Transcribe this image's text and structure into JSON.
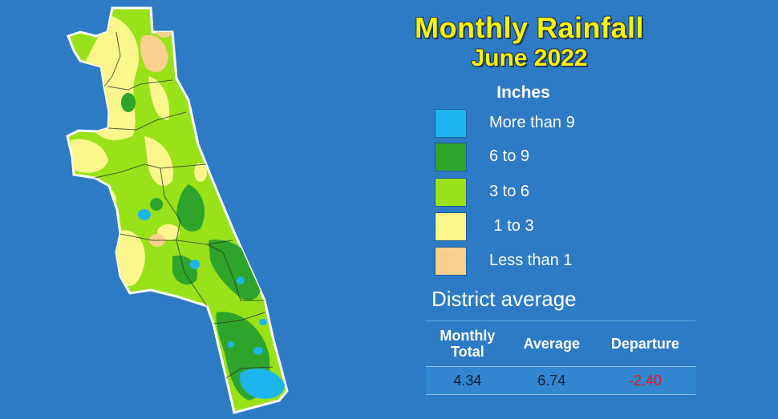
{
  "title": "Monthly Rainfall",
  "subtitle": "June 2022",
  "legend": {
    "units": "Inches",
    "items": [
      {
        "label": "More than 9",
        "color": "#1eb4ee"
      },
      {
        "label": "6 to 9",
        "color": "#2ea52a"
      },
      {
        "label": "3 to 6",
        "color": "#99e21a"
      },
      {
        "label": " 1 to 3",
        "color": "#fbf78c"
      },
      {
        "label": "Less than 1",
        "color": "#fad08e"
      }
    ]
  },
  "district": {
    "heading": "District average",
    "columns": [
      "Monthly\nTotal",
      "Average",
      "Departure"
    ],
    "values": [
      "4.34",
      "6.74",
      "-2.40"
    ],
    "departure_color": "#e8161c"
  },
  "map": {
    "background": "#2d7bc4",
    "outline_color": "#ffffff",
    "boundary_color": "#2d3a2a"
  }
}
